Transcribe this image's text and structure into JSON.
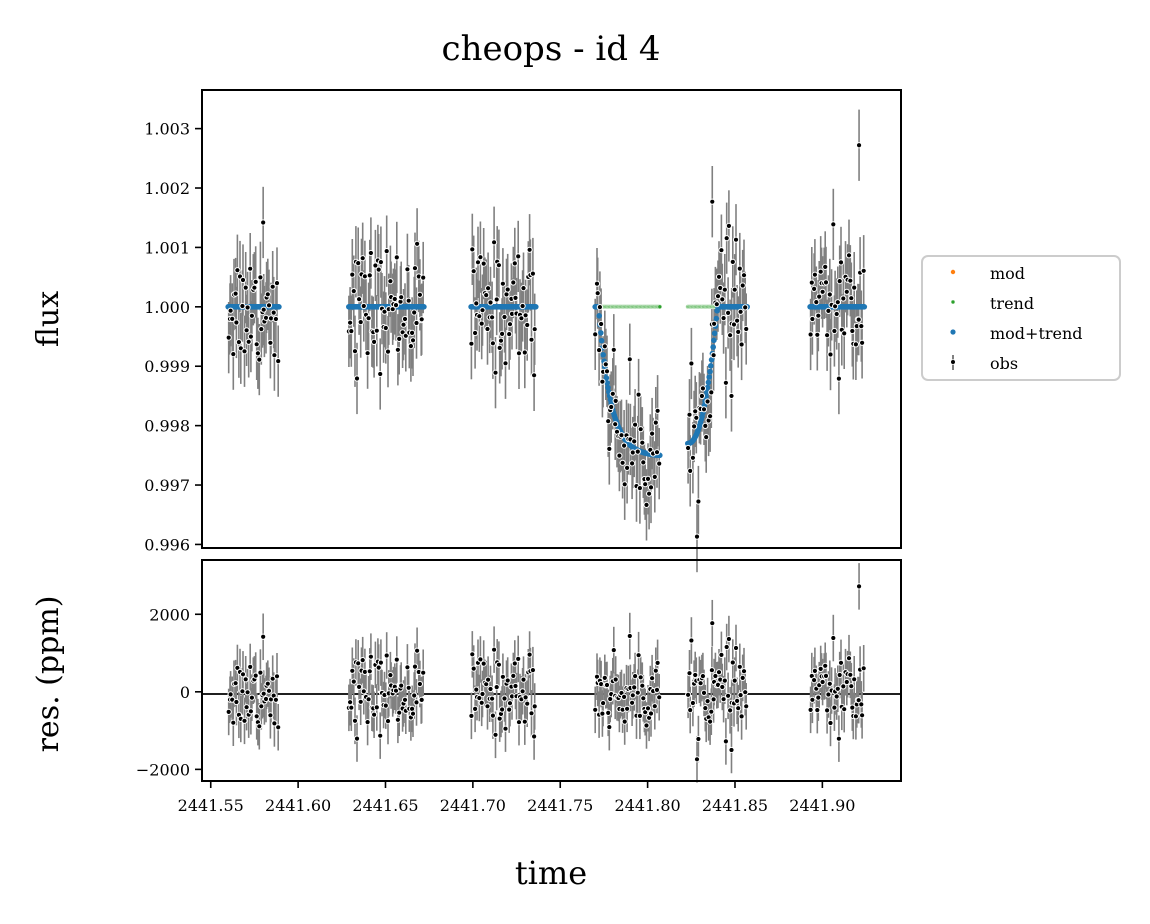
{
  "chart_data": [
    {
      "type": "scatter",
      "title": "cheops - id 4",
      "xlabel": "",
      "ylabel": "flux",
      "xlim": [
        2441.545,
        2441.945
      ],
      "ylim": [
        0.99594,
        1.00365
      ],
      "yticks": [
        0.996,
        0.997,
        0.998,
        0.999,
        1.0,
        1.001,
        1.002,
        1.003
      ],
      "ytick_labels": [
        "0.996",
        "0.997",
        "0.998",
        "0.999",
        "1.000",
        "1.001",
        "1.002",
        "1.003"
      ],
      "legend": {
        "position": "right",
        "entries": [
          {
            "label": "mod",
            "color": "#ff7f0e"
          },
          {
            "label": "trend",
            "color": "#2ca02c"
          },
          {
            "label": "mod+trend",
            "color": "#1f77b4"
          },
          {
            "label": "obs",
            "color": "#000000"
          }
        ]
      },
      "visits": [
        {
          "start": 2441.56,
          "end": 2441.589,
          "model": "flat"
        },
        {
          "start": 2441.629,
          "end": 2441.672,
          "model": "flat"
        },
        {
          "start": 2441.699,
          "end": 2441.736,
          "model": "flat"
        },
        {
          "start": 2441.77,
          "end": 2441.807,
          "model": "ingress",
          "start_flux": 1.0,
          "end_flux": 0.9975
        },
        {
          "start": 2441.823,
          "end": 2441.857,
          "model": "egress",
          "start_flux": 0.9977,
          "egress_end": 2441.84
        },
        {
          "start": 2441.893,
          "end": 2441.924,
          "model": "flat"
        }
      ],
      "obs_error_ppm": 600,
      "scatter_ppm": 500,
      "outliers": [
        {
          "x": 2441.921,
          "y": 1.00272
        },
        {
          "x": 2441.837,
          "y": 1.00177
        },
        {
          "x": 2441.58,
          "y": 1.00142
        },
        {
          "x": 2441.848,
          "y": 0.9985
        }
      ]
    },
    {
      "type": "scatter",
      "title": "",
      "xlabel": "time",
      "ylabel": "res. (ppm)",
      "xlim": [
        2441.545,
        2441.945
      ],
      "ylim": [
        -2300,
        3400
      ],
      "yticks": [
        -2000,
        0,
        2000
      ],
      "ytick_labels": [
        "−2000",
        "0",
        "2000"
      ],
      "xticks": [
        2441.55,
        2441.6,
        2441.65,
        2441.7,
        2441.75,
        2441.8,
        2441.85,
        2441.9
      ],
      "xtick_labels": [
        "2441.55",
        "2441.60",
        "2441.65",
        "2441.70",
        "2441.75",
        "2441.80",
        "2441.85",
        "2441.90"
      ],
      "zero_line": true,
      "outliers_ppm": [
        {
          "x": 2441.921,
          "y": 2720
        },
        {
          "x": 2441.837,
          "y": 1770
        },
        {
          "x": 2441.58,
          "y": 1420
        },
        {
          "x": 2441.848,
          "y": -1500
        }
      ]
    }
  ]
}
